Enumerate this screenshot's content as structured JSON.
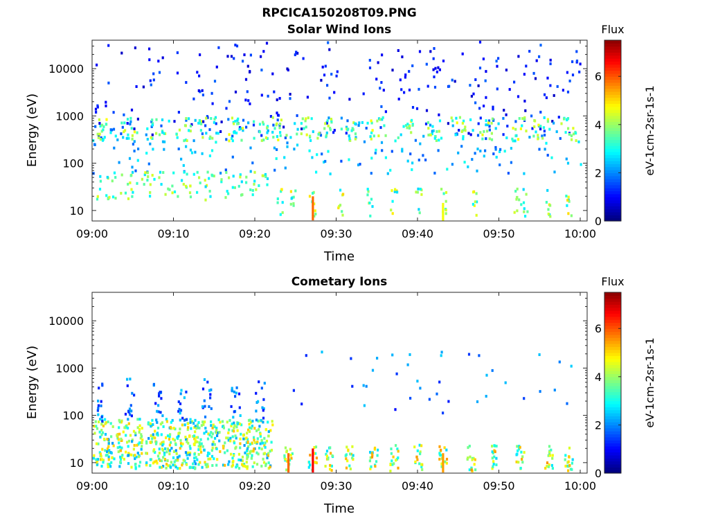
{
  "figure": {
    "title": "RPCICA150208T09.PNG"
  },
  "colors": {
    "colormap": "jet",
    "axis": "#262626",
    "background": "#ffffff"
  },
  "chart_data": [
    {
      "type": "heatmap",
      "title": "Solar Wind Ions",
      "xlabel": "Time",
      "ylabel": "Energy (eV)",
      "x_ticks": [
        "09:00",
        "09:10",
        "09:20",
        "09:30",
        "09:40",
        "09:50",
        "10:00"
      ],
      "xlim": [
        "09:00",
        "10:00"
      ],
      "y_ticks": [
        "10",
        "100",
        "1000",
        "10000"
      ],
      "y_scale": "log",
      "ylim": [
        6,
        40000
      ],
      "colorbar": {
        "label": "Flux",
        "unit": "eV-1cm-2sr-1s-1",
        "ticks": [
          "0",
          "2",
          "4",
          "6"
        ],
        "range": [
          0,
          7.5
        ]
      },
      "bands": [
        {
          "name": "bursts_mid",
          "energy": [
            300,
            600
          ],
          "level": 3.5
        },
        {
          "name": "low_energy",
          "energy": [
            15,
            60
          ],
          "level": 3.5
        },
        {
          "name": "spikes_10eV",
          "minutes": [
            27,
            43
          ],
          "level": 5.5
        }
      ]
    },
    {
      "type": "heatmap",
      "title": "Cometary Ions",
      "xlabel": "Time",
      "ylabel": "Energy (eV)",
      "x_ticks": [
        "09:00",
        "09:10",
        "09:20",
        "09:30",
        "09:40",
        "09:50",
        "10:00"
      ],
      "xlim": [
        "09:00",
        "10:00"
      ],
      "y_ticks": [
        "10",
        "100",
        "1000",
        "10000"
      ],
      "y_scale": "log",
      "ylim": [
        6,
        40000
      ],
      "colorbar": {
        "label": "Flux",
        "unit": "eV-1cm-2sr-1s-1",
        "ticks": [
          "0",
          "2",
          "4",
          "6"
        ],
        "range": [
          0,
          7.5
        ]
      },
      "bands": [
        {
          "name": "plumes",
          "minutes": [
            1,
            4.5,
            8,
            11,
            14,
            17.5,
            20.5
          ],
          "energy": [
            8,
            90
          ],
          "level": 4.5
        },
        {
          "name": "spikes",
          "minutes": [
            24,
            27,
            43
          ],
          "energy": [
            6,
            20
          ],
          "level": 6.5
        }
      ]
    }
  ]
}
